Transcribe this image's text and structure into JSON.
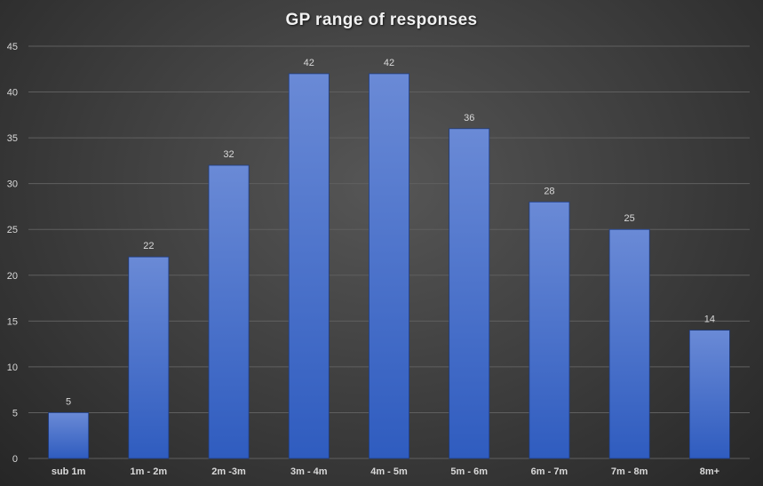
{
  "chart_data": {
    "type": "bar",
    "title": "GP range of responses",
    "xlabel": "",
    "ylabel": "",
    "categories": [
      "sub 1m",
      "1m - 2m",
      "2m -3m",
      "3m - 4m",
      "4m - 5m",
      "5m - 6m",
      "6m - 7m",
      "7m - 8m",
      "8m+"
    ],
    "values": [
      5,
      22,
      32,
      42,
      42,
      36,
      28,
      25,
      14
    ],
    "data_labels": [
      "5",
      "22",
      "32",
      "42",
      "42",
      "36",
      "28",
      "25",
      "14"
    ],
    "ylim": [
      0,
      45
    ],
    "yticks": [
      0,
      5,
      10,
      15,
      20,
      25,
      30,
      35,
      40,
      45
    ],
    "grid": true,
    "legend": "none",
    "colors": {
      "bar_top": "#6a8ad6",
      "bar_bottom": "#2f5cbf",
      "bar_edge": "#1e3c82",
      "gridline": "#5f5f5f",
      "text": "#d9d9d9",
      "background": "#3c3c3c"
    }
  }
}
